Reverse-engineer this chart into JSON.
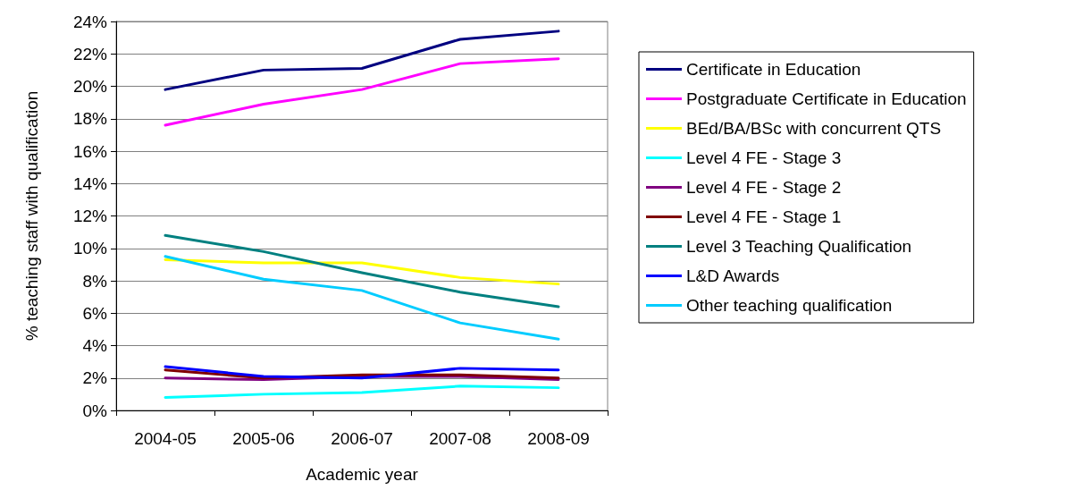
{
  "chart_data": {
    "type": "line",
    "xlabel": "Academic year",
    "ylabel": "% teaching staff with qualification",
    "categories": [
      "2004-05",
      "2005-06",
      "2006-07",
      "2007-08",
      "2008-09"
    ],
    "series": [
      {
        "name": "Certificate in Education",
        "color": "#000080",
        "values": [
          19.8,
          21.0,
          21.1,
          22.9,
          23.4
        ]
      },
      {
        "name": "Postgraduate Certificate in Education",
        "color": "#ff00ff",
        "values": [
          17.6,
          18.9,
          19.8,
          21.4,
          21.7
        ]
      },
      {
        "name": "BEd/BA/BSc with concurrent QTS",
        "color": "#ffff00",
        "values": [
          9.3,
          9.1,
          9.1,
          8.2,
          7.8
        ]
      },
      {
        "name": "Level 4 FE - Stage 3",
        "color": "#00ffff",
        "values": [
          0.8,
          1.0,
          1.1,
          1.5,
          1.4
        ]
      },
      {
        "name": "Level 4 FE - Stage 2",
        "color": "#800080",
        "values": [
          2.0,
          1.9,
          2.1,
          2.1,
          1.9
        ]
      },
      {
        "name": "Level 4 FE - Stage 1",
        "color": "#800000",
        "values": [
          2.5,
          2.0,
          2.2,
          2.2,
          2.0
        ]
      },
      {
        "name": "Level 3 Teaching Qualification",
        "color": "#008080",
        "values": [
          10.8,
          9.8,
          8.5,
          7.3,
          6.4
        ]
      },
      {
        "name": "L&D Awards",
        "color": "#0000ff",
        "values": [
          2.7,
          2.1,
          2.0,
          2.6,
          2.5
        ]
      },
      {
        "name": "Other teaching qualification",
        "color": "#00ccff",
        "values": [
          9.5,
          8.1,
          7.4,
          5.4,
          4.4
        ]
      }
    ],
    "ylim": [
      0,
      24
    ],
    "yticks": [
      {
        "value": 0,
        "label": "0%"
      },
      {
        "value": 2,
        "label": "2%"
      },
      {
        "value": 4,
        "label": "4%"
      },
      {
        "value": 6,
        "label": "6%"
      },
      {
        "value": 8,
        "label": "8%"
      },
      {
        "value": 10,
        "label": "10%"
      },
      {
        "value": 12,
        "label": "12%"
      },
      {
        "value": 14,
        "label": "14%"
      },
      {
        "value": 16,
        "label": "16%"
      },
      {
        "value": 18,
        "label": "18%"
      },
      {
        "value": 20,
        "label": "20%"
      },
      {
        "value": 22,
        "label": "22%"
      },
      {
        "value": 24,
        "label": "24%"
      }
    ],
    "grid": "y",
    "legend": "right",
    "marker": "none",
    "line_style": "solid"
  }
}
